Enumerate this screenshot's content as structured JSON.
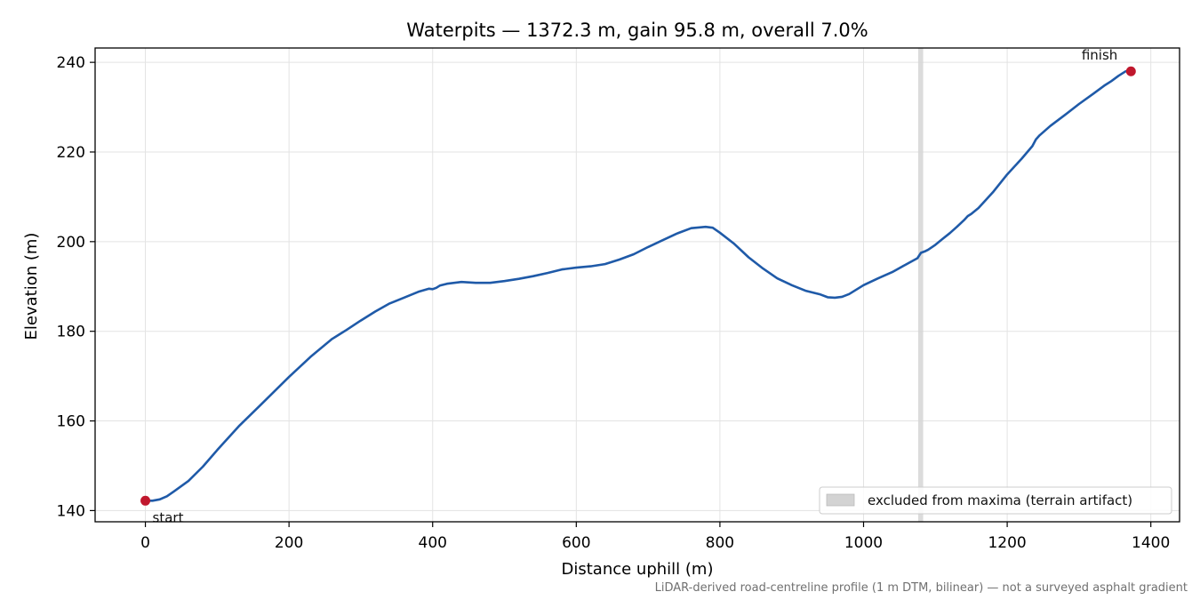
{
  "chart_data": {
    "type": "line",
    "title": "Waterpits — 1372.3 m, gain 95.8 m, overall 7.0%",
    "xlabel": "Distance uphill (m)",
    "ylabel": "Elevation (m)",
    "xlim": [
      -70,
      1440
    ],
    "ylim": [
      137.5,
      243.2
    ],
    "xticks": [
      0,
      200,
      400,
      600,
      800,
      1000,
      1200,
      1400
    ],
    "yticks": [
      140,
      160,
      180,
      200,
      220,
      240
    ],
    "grid": true,
    "colors": {
      "line": "#1f5aa8",
      "endpoints": "#c0172d",
      "excluded_band": "#d3d3d3",
      "grid": "#e3e3e3"
    },
    "series": [
      {
        "x": [
          0,
          10,
          20,
          30,
          40,
          60,
          80,
          100,
          130,
          160,
          200,
          230,
          260,
          280,
          300,
          320,
          340,
          360,
          380,
          395,
          400,
          405,
          410,
          420,
          440,
          460,
          480,
          500,
          520,
          540,
          560,
          580,
          600,
          620,
          640,
          660,
          680,
          700,
          720,
          740,
          760,
          780,
          790,
          800,
          820,
          840,
          860,
          880,
          900,
          920,
          940,
          950,
          960,
          970,
          980,
          1000,
          1020,
          1040,
          1060,
          1075,
          1080,
          1085,
          1090,
          1100,
          1110,
          1120,
          1130,
          1140,
          1145,
          1150,
          1160,
          1180,
          1200,
          1220,
          1235,
          1240,
          1245,
          1260,
          1280,
          1300,
          1320,
          1335,
          1345,
          1355,
          1365,
          1372.3
        ],
        "y": [
          142.2,
          142.2,
          142.5,
          143.2,
          144.3,
          146.6,
          149.8,
          153.5,
          158.8,
          163.5,
          169.8,
          174.3,
          178.3,
          180.3,
          182.4,
          184.4,
          186.2,
          187.5,
          188.8,
          189.5,
          189.4,
          189.7,
          190.2,
          190.6,
          191.0,
          190.8,
          190.8,
          191.2,
          191.7,
          192.3,
          193.0,
          193.8,
          194.2,
          194.5,
          195.0,
          196.0,
          197.2,
          198.8,
          200.3,
          201.8,
          203.0,
          203.3,
          203.1,
          202.0,
          199.5,
          196.5,
          194.0,
          191.8,
          190.3,
          189.0,
          188.2,
          187.6,
          187.5,
          187.7,
          188.3,
          190.3,
          191.8,
          193.2,
          195.0,
          196.3,
          197.5,
          197.8,
          198.2,
          199.3,
          200.6,
          201.9,
          203.3,
          204.8,
          205.7,
          206.2,
          207.5,
          211.0,
          215.0,
          218.5,
          221.3,
          222.8,
          223.7,
          225.8,
          228.2,
          230.7,
          233.0,
          234.8,
          235.8,
          237.0,
          238.0,
          238.0
        ]
      }
    ],
    "markers": [
      {
        "x": 0,
        "y": 142.2,
        "label": "start"
      },
      {
        "x": 1372.3,
        "y": 238.0,
        "label": "finish"
      }
    ],
    "excluded_range": {
      "x": [
        1076,
        1083
      ]
    },
    "legend": {
      "placement": "bottom-right",
      "entries": [
        "excluded from maxima (terrain artifact)"
      ]
    },
    "footnote": "LiDAR-derived road-centreline profile (1 m DTM, bilinear) — not a surveyed asphalt gradient"
  }
}
